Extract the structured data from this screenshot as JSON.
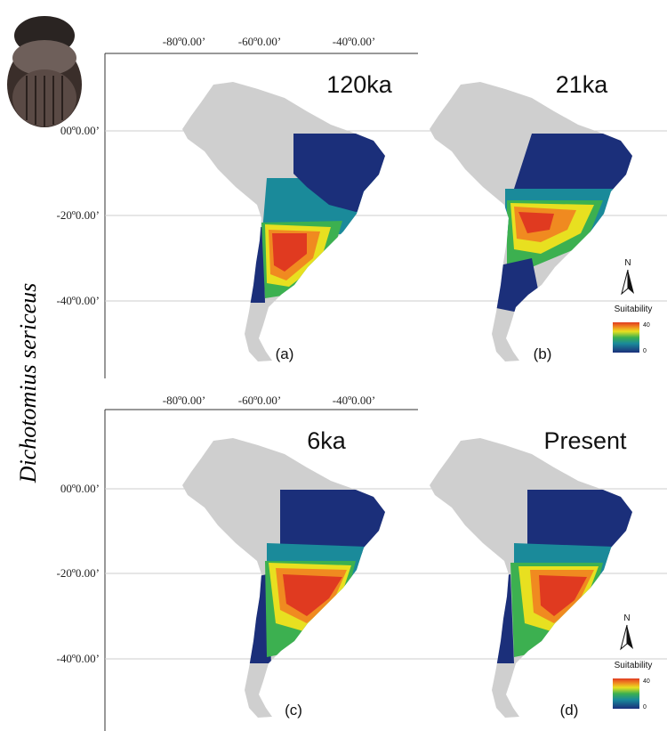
{
  "species_label": "Dichotomius sericeus",
  "rows": [
    {
      "longitude_labels": [
        "-80º0.00’",
        "-60º0.00’",
        "-40º0.00’"
      ],
      "latitude_labels": [
        "00º0.00’",
        "-20º0.00’",
        "-40º0.00’"
      ]
    },
    {
      "longitude_labels": [
        "-80º0.00’",
        "-60º0.00’",
        "-40º0.00’"
      ],
      "latitude_labels": [
        "00º0.00’",
        "-20º0.00’",
        "-40º0.00’"
      ]
    }
  ],
  "panels": [
    {
      "title": "120ka",
      "label": "(a)"
    },
    {
      "title": "21ka",
      "label": "(b)"
    },
    {
      "title": "6ka",
      "label": "(c)"
    },
    {
      "title": "Present",
      "label": "(d)"
    }
  ],
  "legends": [
    {
      "north": "N",
      "title": "Suitability",
      "max": "40",
      "min": "0"
    },
    {
      "north": "N",
      "title": "Suitability",
      "max": "40",
      "min": "0"
    }
  ]
}
